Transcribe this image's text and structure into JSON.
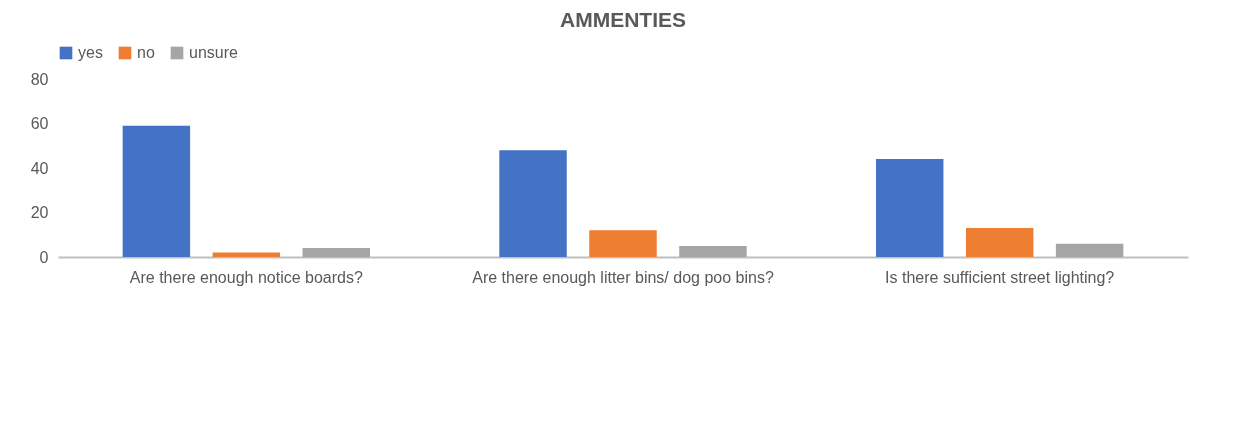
{
  "chart_data": {
    "type": "bar",
    "title": "AMMENTIES",
    "categories": [
      "Are there enough notice boards?",
      "Are there enough litter bins/ dog poo bins?",
      "Is there sufficient street lighting?"
    ],
    "series": [
      {
        "name": "yes",
        "color": "#4472c4",
        "values": [
          59,
          48,
          44
        ]
      },
      {
        "name": "no",
        "color": "#ed7d31",
        "values": [
          2,
          12,
          13
        ]
      },
      {
        "name": "unsure",
        "color": "#a5a5a5",
        "values": [
          4,
          5,
          6
        ]
      }
    ],
    "ylim": [
      0,
      80
    ],
    "yticks": [
      0,
      20,
      40,
      60,
      80
    ],
    "grid": false,
    "legend": "top"
  }
}
